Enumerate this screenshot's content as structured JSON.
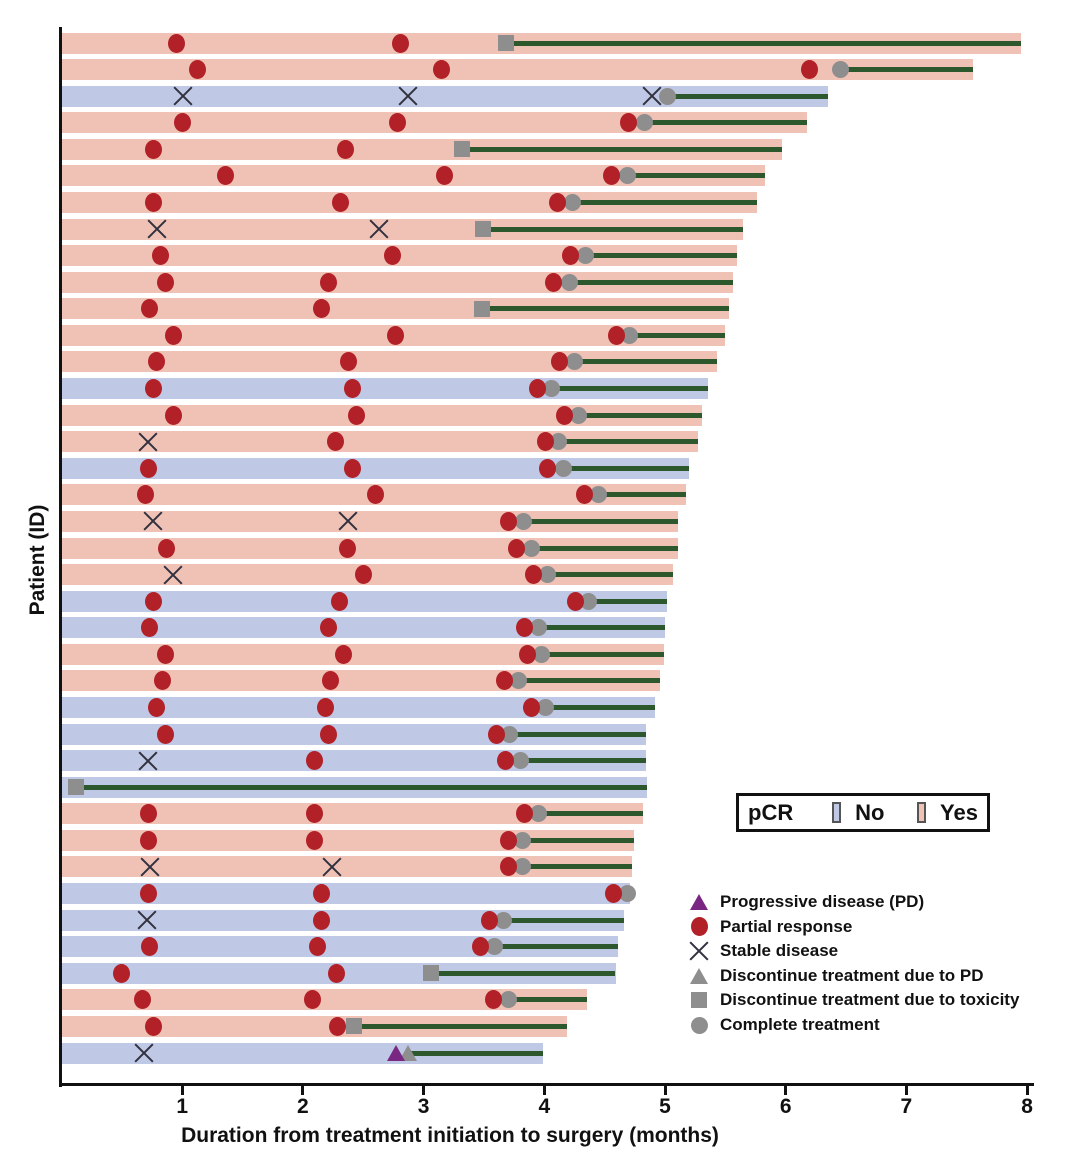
{
  "axis": {
    "x_label": "Duration from treatment initiation to surgery (months)",
    "y_label": "Patient (ID)",
    "x_ticks": [
      "1",
      "2",
      "3",
      "4",
      "5",
      "6",
      "7",
      "8"
    ],
    "x_min": 0,
    "x_max": 8
  },
  "pcr_legend": {
    "title": "pCR",
    "no_label": "No",
    "yes_label": "Yes"
  },
  "marker_legend": [
    {
      "icon": "pd-triangle-icon",
      "label": "Progressive disease (PD)"
    },
    {
      "icon": "pr-circle-icon",
      "label": "Partial response"
    },
    {
      "icon": "sd-x-icon",
      "label": "Stable disease"
    },
    {
      "icon": "dpd-triangle-icon",
      "label": "Discontinue treatment due to PD"
    },
    {
      "icon": "tox-square-icon",
      "label": "Discontinue treatment due to toxicity"
    },
    {
      "icon": "comp-circle-icon",
      "label": "Complete treatment"
    }
  ],
  "colors": {
    "pcr_no": "#bfc9e5",
    "pcr_yes": "#f0c2b5",
    "partial_response": "#b22028",
    "stable_disease": "#31313f",
    "progressive_disease": "#7a2784",
    "discontinue_gray": "#8e8e8e",
    "treatment_line": "#2d572c",
    "axis": "#111111"
  },
  "chart_data": {
    "type": "swimmer",
    "x_unit": "months",
    "x_range": [
      0,
      8
    ],
    "patients": [
      {
        "pcr": "Yes",
        "end": 7.95,
        "events": [
          {
            "t": "PR",
            "x": 0.95
          },
          {
            "t": "PR",
            "x": 2.81
          }
        ],
        "eot": {
          "t": "toxicity",
          "x": 3.68
        }
      },
      {
        "pcr": "Yes",
        "end": 7.55,
        "events": [
          {
            "t": "PR",
            "x": 1.13
          },
          {
            "t": "PR",
            "x": 3.15
          },
          {
            "t": "PR",
            "x": 6.2
          }
        ],
        "eot": {
          "t": "complete",
          "x": 6.45
        }
      },
      {
        "pcr": "No",
        "end": 6.35,
        "events": [
          {
            "t": "SD",
            "x": 1.01
          },
          {
            "t": "SD",
            "x": 2.87
          },
          {
            "t": "SD",
            "x": 4.89
          }
        ],
        "eot": {
          "t": "complete",
          "x": 5.02
        }
      },
      {
        "pcr": "Yes",
        "end": 6.18,
        "events": [
          {
            "t": "PR",
            "x": 1.0
          },
          {
            "t": "PR",
            "x": 2.78
          },
          {
            "t": "PR",
            "x": 4.7
          }
        ],
        "eot": {
          "t": "complete",
          "x": 4.83
        }
      },
      {
        "pcr": "Yes",
        "end": 5.97,
        "events": [
          {
            "t": "PR",
            "x": 0.76
          },
          {
            "t": "PR",
            "x": 2.35
          }
        ],
        "eot": {
          "t": "toxicity",
          "x": 3.32
        }
      },
      {
        "pcr": "Yes",
        "end": 5.83,
        "events": [
          {
            "t": "PR",
            "x": 1.36
          },
          {
            "t": "PR",
            "x": 3.17
          },
          {
            "t": "PR",
            "x": 4.56
          }
        ],
        "eot": {
          "t": "complete",
          "x": 4.69
        }
      },
      {
        "pcr": "Yes",
        "end": 5.76,
        "events": [
          {
            "t": "PR",
            "x": 0.76
          },
          {
            "t": "PR",
            "x": 2.31
          },
          {
            "t": "PR",
            "x": 4.11
          }
        ],
        "eot": {
          "t": "complete",
          "x": 4.23
        }
      },
      {
        "pcr": "Yes",
        "end": 5.65,
        "events": [
          {
            "t": "SD",
            "x": 0.79
          },
          {
            "t": "SD",
            "x": 2.63
          }
        ],
        "eot": {
          "t": "toxicity",
          "x": 3.49
        }
      },
      {
        "pcr": "Yes",
        "end": 5.6,
        "events": [
          {
            "t": "PR",
            "x": 0.82
          },
          {
            "t": "PR",
            "x": 2.74
          },
          {
            "t": "PR",
            "x": 4.22
          }
        ],
        "eot": {
          "t": "complete",
          "x": 4.34
        }
      },
      {
        "pcr": "Yes",
        "end": 5.56,
        "events": [
          {
            "t": "PR",
            "x": 0.86
          },
          {
            "t": "PR",
            "x": 2.21
          },
          {
            "t": "PR",
            "x": 4.08
          }
        ],
        "eot": {
          "t": "complete",
          "x": 4.21
        }
      },
      {
        "pcr": "Yes",
        "end": 5.53,
        "events": [
          {
            "t": "PR",
            "x": 0.73
          },
          {
            "t": "PR",
            "x": 2.15
          }
        ],
        "eot": {
          "t": "toxicity",
          "x": 3.48
        }
      },
      {
        "pcr": "Yes",
        "end": 5.5,
        "events": [
          {
            "t": "PR",
            "x": 0.93
          },
          {
            "t": "PR",
            "x": 2.77
          },
          {
            "t": "PR",
            "x": 4.6
          }
        ],
        "eot": {
          "t": "complete",
          "x": 4.71
        }
      },
      {
        "pcr": "Yes",
        "end": 5.43,
        "events": [
          {
            "t": "PR",
            "x": 0.79
          },
          {
            "t": "PR",
            "x": 2.38
          },
          {
            "t": "PR",
            "x": 4.13
          }
        ],
        "eot": {
          "t": "complete",
          "x": 4.25
        }
      },
      {
        "pcr": "No",
        "end": 5.36,
        "events": [
          {
            "t": "PR",
            "x": 0.76
          },
          {
            "t": "PR",
            "x": 2.41
          },
          {
            "t": "PR",
            "x": 3.94
          }
        ],
        "eot": {
          "t": "complete",
          "x": 4.06
        }
      },
      {
        "pcr": "Yes",
        "end": 5.31,
        "events": [
          {
            "t": "PR",
            "x": 0.93
          },
          {
            "t": "PR",
            "x": 2.44
          },
          {
            "t": "PR",
            "x": 4.17
          }
        ],
        "eot": {
          "t": "complete",
          "x": 4.28
        }
      },
      {
        "pcr": "Yes",
        "end": 5.27,
        "events": [
          {
            "t": "SD",
            "x": 0.72
          },
          {
            "t": "PR",
            "x": 2.27
          },
          {
            "t": "PR",
            "x": 4.01
          }
        ],
        "eot": {
          "t": "complete",
          "x": 4.12
        }
      },
      {
        "pcr": "No",
        "end": 5.2,
        "events": [
          {
            "t": "PR",
            "x": 0.72
          },
          {
            "t": "PR",
            "x": 2.41
          },
          {
            "t": "PR",
            "x": 4.03
          }
        ],
        "eot": {
          "t": "complete",
          "x": 4.16
        }
      },
      {
        "pcr": "Yes",
        "end": 5.17,
        "events": [
          {
            "t": "PR",
            "x": 0.7
          },
          {
            "t": "PR",
            "x": 2.6
          },
          {
            "t": "PR",
            "x": 4.33
          }
        ],
        "eot": {
          "t": "complete",
          "x": 4.45
        }
      },
      {
        "pcr": "Yes",
        "end": 5.11,
        "events": [
          {
            "t": "SD",
            "x": 0.76
          },
          {
            "t": "SD",
            "x": 2.37
          },
          {
            "t": "PR",
            "x": 3.7
          }
        ],
        "eot": {
          "t": "complete",
          "x": 3.83
        }
      },
      {
        "pcr": "Yes",
        "end": 5.11,
        "events": [
          {
            "t": "PR",
            "x": 0.87
          },
          {
            "t": "PR",
            "x": 2.37
          },
          {
            "t": "PR",
            "x": 3.77
          }
        ],
        "eot": {
          "t": "complete",
          "x": 3.89
        }
      },
      {
        "pcr": "Yes",
        "end": 5.07,
        "events": [
          {
            "t": "SD",
            "x": 0.92
          },
          {
            "t": "PR",
            "x": 2.5
          },
          {
            "t": "PR",
            "x": 3.91
          }
        ],
        "eot": {
          "t": "complete",
          "x": 4.03
        }
      },
      {
        "pcr": "No",
        "end": 5.02,
        "events": [
          {
            "t": "PR",
            "x": 0.76
          },
          {
            "t": "PR",
            "x": 2.3
          },
          {
            "t": "PR",
            "x": 4.26
          }
        ],
        "eot": {
          "t": "complete",
          "x": 4.37
        }
      },
      {
        "pcr": "No",
        "end": 5.0,
        "events": [
          {
            "t": "PR",
            "x": 0.73
          },
          {
            "t": "PR",
            "x": 2.21
          },
          {
            "t": "PR",
            "x": 3.84
          }
        ],
        "eot": {
          "t": "complete",
          "x": 3.95
        }
      },
      {
        "pcr": "Yes",
        "end": 4.99,
        "events": [
          {
            "t": "PR",
            "x": 0.86
          },
          {
            "t": "PR",
            "x": 2.34
          },
          {
            "t": "PR",
            "x": 3.86
          }
        ],
        "eot": {
          "t": "complete",
          "x": 3.98
        }
      },
      {
        "pcr": "Yes",
        "end": 4.96,
        "events": [
          {
            "t": "PR",
            "x": 0.84
          },
          {
            "t": "PR",
            "x": 2.23
          },
          {
            "t": "PR",
            "x": 3.67
          }
        ],
        "eot": {
          "t": "complete",
          "x": 3.79
        }
      },
      {
        "pcr": "No",
        "end": 4.92,
        "events": [
          {
            "t": "PR",
            "x": 0.79
          },
          {
            "t": "PR",
            "x": 2.19
          },
          {
            "t": "PR",
            "x": 3.89
          }
        ],
        "eot": {
          "t": "complete",
          "x": 4.01
        }
      },
      {
        "pcr": "No",
        "end": 4.84,
        "events": [
          {
            "t": "PR",
            "x": 0.86
          },
          {
            "t": "PR",
            "x": 2.21
          },
          {
            "t": "PR",
            "x": 3.6
          }
        ],
        "eot": {
          "t": "complete",
          "x": 3.71
        }
      },
      {
        "pcr": "No",
        "end": 4.84,
        "events": [
          {
            "t": "SD",
            "x": 0.72
          },
          {
            "t": "PR",
            "x": 2.1
          },
          {
            "t": "PR",
            "x": 3.68
          }
        ],
        "eot": {
          "t": "complete",
          "x": 3.8
        }
      },
      {
        "pcr": "No",
        "end": 4.85,
        "events": [],
        "eot": {
          "t": "toxicity",
          "x": 0.12
        }
      },
      {
        "pcr": "Yes",
        "end": 4.82,
        "events": [
          {
            "t": "PR",
            "x": 0.72
          },
          {
            "t": "PR",
            "x": 2.1
          },
          {
            "t": "PR",
            "x": 3.84
          }
        ],
        "eot": {
          "t": "complete",
          "x": 3.95
        }
      },
      {
        "pcr": "Yes",
        "end": 4.74,
        "events": [
          {
            "t": "PR",
            "x": 0.72
          },
          {
            "t": "PR",
            "x": 2.1
          },
          {
            "t": "PR",
            "x": 3.7
          }
        ],
        "eot": {
          "t": "complete",
          "x": 3.82
        }
      },
      {
        "pcr": "Yes",
        "end": 4.73,
        "events": [
          {
            "t": "SD",
            "x": 0.73
          },
          {
            "t": "SD",
            "x": 2.24
          },
          {
            "t": "PR",
            "x": 3.7
          }
        ],
        "eot": {
          "t": "complete",
          "x": 3.82
        }
      },
      {
        "pcr": "No",
        "end": 4.71,
        "events": [
          {
            "t": "PR",
            "x": 0.72
          },
          {
            "t": "PR",
            "x": 2.15
          },
          {
            "t": "PR",
            "x": 4.57
          }
        ],
        "eot": {
          "t": "complete",
          "x": 4.69
        }
      },
      {
        "pcr": "No",
        "end": 4.66,
        "events": [
          {
            "t": "SD",
            "x": 0.71
          },
          {
            "t": "PR",
            "x": 2.15
          },
          {
            "t": "PR",
            "x": 3.55
          }
        ],
        "eot": {
          "t": "complete",
          "x": 3.66
        }
      },
      {
        "pcr": "No",
        "end": 4.61,
        "events": [
          {
            "t": "PR",
            "x": 0.73
          },
          {
            "t": "PR",
            "x": 2.12
          },
          {
            "t": "PR",
            "x": 3.47
          }
        ],
        "eot": {
          "t": "complete",
          "x": 3.59
        }
      },
      {
        "pcr": "No",
        "end": 4.59,
        "events": [
          {
            "t": "PR",
            "x": 0.5
          },
          {
            "t": "PR",
            "x": 2.28
          }
        ],
        "eot": {
          "t": "toxicity",
          "x": 3.06
        }
      },
      {
        "pcr": "Yes",
        "end": 4.35,
        "events": [
          {
            "t": "PR",
            "x": 0.67
          },
          {
            "t": "PR",
            "x": 2.08
          },
          {
            "t": "PR",
            "x": 3.58
          }
        ],
        "eot": {
          "t": "complete",
          "x": 3.7
        }
      },
      {
        "pcr": "Yes",
        "end": 4.19,
        "events": [
          {
            "t": "PR",
            "x": 0.76
          },
          {
            "t": "PR",
            "x": 2.29
          }
        ],
        "eot": {
          "t": "toxicity",
          "x": 2.42
        }
      },
      {
        "pcr": "No",
        "end": 3.99,
        "events": [
          {
            "t": "SD",
            "x": 0.68
          },
          {
            "t": "PD",
            "x": 2.77
          }
        ],
        "eot": {
          "t": "discontinue_pd",
          "x": 2.87
        }
      }
    ]
  }
}
